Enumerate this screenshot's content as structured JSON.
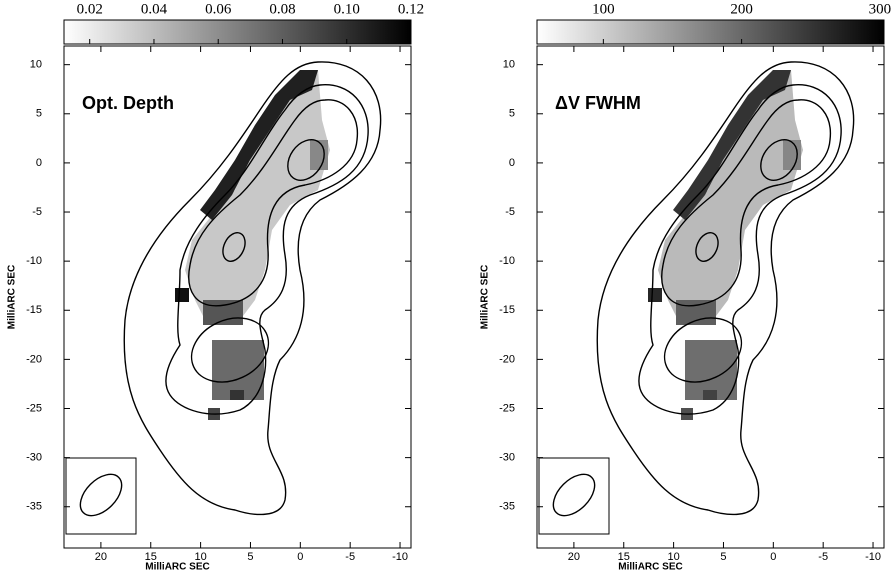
{
  "chart_data": [
    {
      "type": "image",
      "annotation": "Opt. Depth",
      "xlabel": "MilliARC SEC",
      "ylabel": "MilliARC SEC",
      "xlim": [
        23.7,
        -11.1
      ],
      "xticks": [
        20,
        15,
        10,
        5,
        0,
        -5,
        -10
      ],
      "ylim": [
        -39.2,
        11.9
      ],
      "yticks": [
        10,
        5,
        0,
        -5,
        -10,
        -15,
        -20,
        -25,
        -30,
        -35
      ],
      "colorbar": {
        "clim": [
          0.012,
          0.12
        ],
        "ticks": [
          0.02,
          0.04,
          0.06,
          0.08,
          {
            "value": 0.1,
            "label": "0.10"
          },
          0.12
        ]
      }
    },
    {
      "type": "image",
      "annotation": "ΔV  FWHM",
      "xlabel": "MilliARC SEC",
      "ylabel": "MilliARC SEC",
      "xlim": [
        23.7,
        -11.1
      ],
      "xticks": [
        20,
        15,
        10,
        5,
        0,
        -5,
        -10
      ],
      "ylim": [
        -39.2,
        11.9
      ],
      "yticks": [
        10,
        5,
        0,
        -5,
        -10,
        -15,
        -20,
        -25,
        -30,
        -35
      ],
      "colorbar": {
        "clim": [
          52,
          303
        ],
        "ticks": [
          100,
          200,
          300
        ]
      }
    }
  ]
}
